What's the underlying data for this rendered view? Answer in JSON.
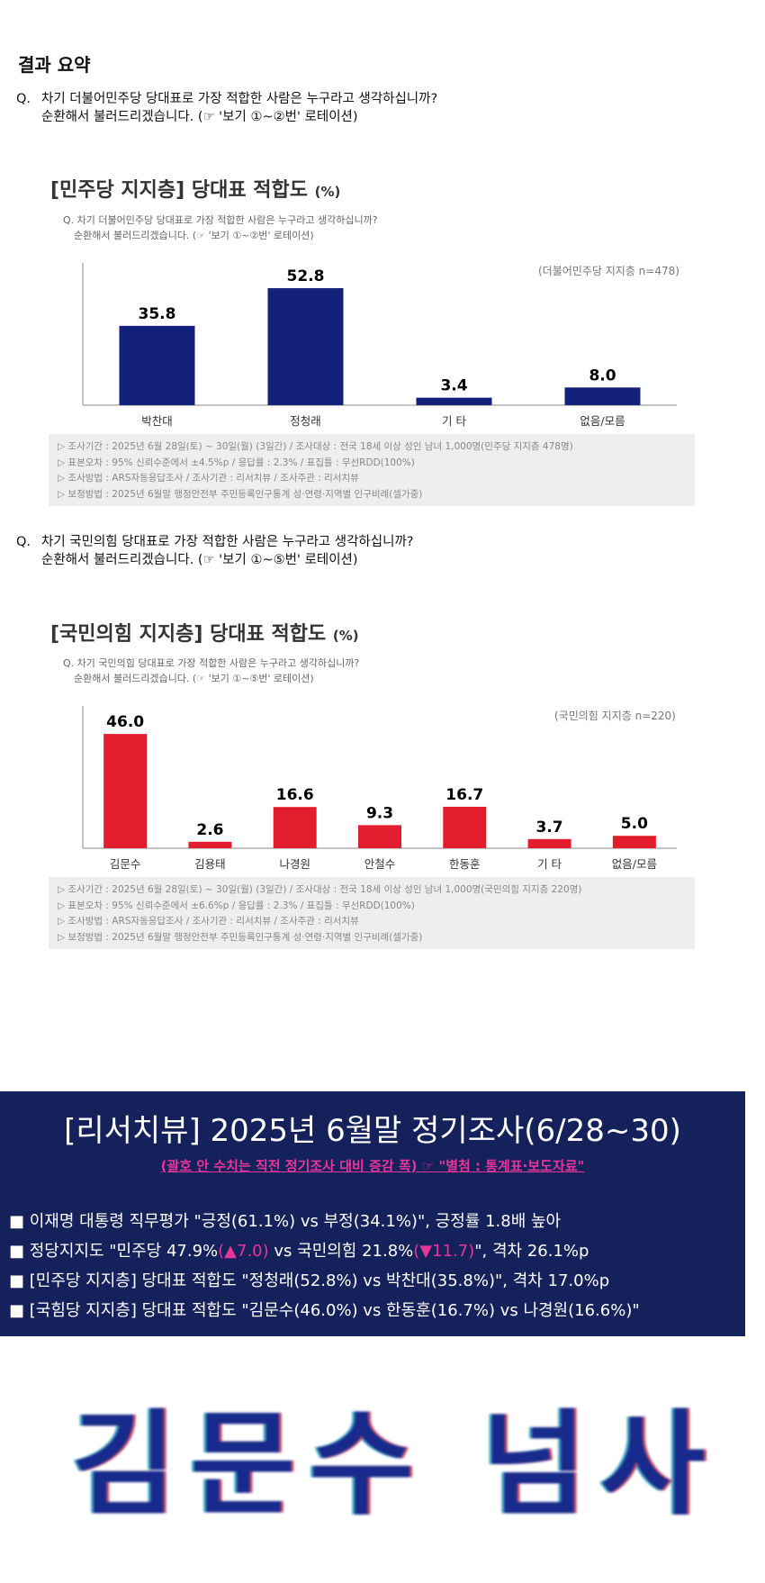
{
  "page": {
    "heading": "결과 요약",
    "q_marker": "Q.",
    "q1": {
      "line1": "차기 더불어민주당 당대표로 가장 적합한 사람은 누구라고 생각하십니까?",
      "line2": "순환해서 불러드리겠습니다. (☞ '보기 ①~②번' 로테이션)"
    },
    "q2": {
      "line1": "차기 국민의힘 당대표로 가장 적합한 사람은 누구라고 생각하십니까?",
      "line2": "순환해서 불러드리겠습니다. (☞ '보기 ①~⑤번' 로테이션)"
    }
  },
  "charts": [
    {
      "title": "[민주당 지지층] 당대표 적합도",
      "unit": "(%)",
      "sub_line1": "Q. 차기 더불어민주당 당대표로 가장 적합한 사람은 누구라고 생각하십니까?",
      "sub_line2": "순환해서 불러드리겠습니다. (☞ '보기 ①~②번' 로테이션)",
      "n_label": "(더불어민주당 지지층 n=478)",
      "notes": [
        "▷ 조사기간 : 2025년 6월 28일(토) ~ 30일(월) (3일간) / 조사대상 : 전국 18세 이상 성인 남녀 1,000명(민주당 지지층 478명)",
        "▷ 표본오차 : 95% 신뢰수준에서 ±4.5%p / 응답률 : 2.3% / 표집틀 : 무선RDD(100%)",
        "▷ 조사방법 : ARS자동응답조사 / 조사기관 : 리서치뷰 / 조사주관 : 리서치뷰",
        "▷ 보정방법 : 2025년 6월말 행정안전부 주민등록인구통계 성·연령·지역별 인구비례(셀가중)"
      ]
    },
    {
      "title": "[국민의힘 지지층] 당대표 적합도",
      "unit": "(%)",
      "sub_line1": "Q. 차기 국민의힘 당대표로 가장 적합한 사람은 누구라고 생각하십니까?",
      "sub_line2": "순환해서 불러드리겠습니다. (☞ '보기 ①~⑤번' 로테이션)",
      "n_label": "(국민의힘 지지층 n=220)",
      "notes": [
        "▷ 조사기간 : 2025년 6월 28일(토) ~ 30일(월) (3일간) / 조사대상 : 전국 18세 이상 성인 남녀 1,000명(국민의힘 지지층 220명)",
        "▷ 표본오차 : 95% 신뢰수준에서 ±6.6%p / 응답률 : 2.3% / 표집틀 : 무선RDD(100%)",
        "▷ 조사방법 : ARS자동응답조사 / 조사기관 : 리서치뷰 / 조사주관 : 리서치뷰",
        "▷ 보정방법 : 2025년 6월말 행정안전부 주민등록인구통계 성·연령·지역별 인구비례(셀가중)"
      ]
    }
  ],
  "chart_data": [
    {
      "type": "bar",
      "title": "[민주당 지지층] 당대표 적합도",
      "categories": [
        "박찬대",
        "정청래",
        "기 타",
        "없음/모름"
      ],
      "values": [
        35.8,
        52.8,
        3.4,
        8.0
      ],
      "value_labels": [
        "35.8",
        "52.8",
        "3.4",
        "8.0"
      ],
      "color": "#13217a",
      "ylim": [
        0,
        65
      ],
      "grid": false,
      "legend": "none"
    },
    {
      "type": "bar",
      "title": "[국민의힘 지지층] 당대표 적합도",
      "categories": [
        "김문수",
        "김용태",
        "나경원",
        "안철수",
        "한동훈",
        "기 타",
        "없음/모름"
      ],
      "values": [
        46.0,
        2.6,
        16.6,
        9.3,
        16.7,
        3.7,
        5.0
      ],
      "value_labels": [
        "46.0",
        "2.6",
        "16.6",
        "9.3",
        "16.7",
        "3.7",
        "5.0"
      ],
      "color": "#e11d2e",
      "ylim": [
        0,
        58
      ],
      "grid": false,
      "legend": "none"
    }
  ],
  "banner": {
    "title": "[리서치뷰] 2025년 6월말 정기조사(6/28~30)",
    "subtitle": "(괄호 안 수치는 직전 정기조사 대비 증감 폭) ☞ \"별첨 : 통계표·보도자료\"",
    "bullet_marker": "■",
    "bullet1": "이재명 대통령 직무평가 \"긍정(61.1%) vs 부정(34.1%)\", 긍정률 1.8배 높아",
    "bullet2_a": "정당지지도 \"민주당 47.9%",
    "bullet2_b": "(▲7.0)",
    "bullet2_c": " vs 국민의힘 21.8%",
    "bullet2_d": "(▼11.7)",
    "bullet2_e": "\", 격차 26.1%p",
    "bullet3": "[민주당 지지층] 당대표 적합도 \"정청래(52.8%) vs 박찬대(35.8%)\", 격차 17.0%p",
    "bullet4": "[국힘당 지지층] 당대표 적합도 \"김문수(46.0%) vs 한동훈(16.7%) vs 나경원(16.6%)\"",
    "accent": "#e8359a",
    "background": "#14215a"
  },
  "wordmark": "김문수 넘사"
}
